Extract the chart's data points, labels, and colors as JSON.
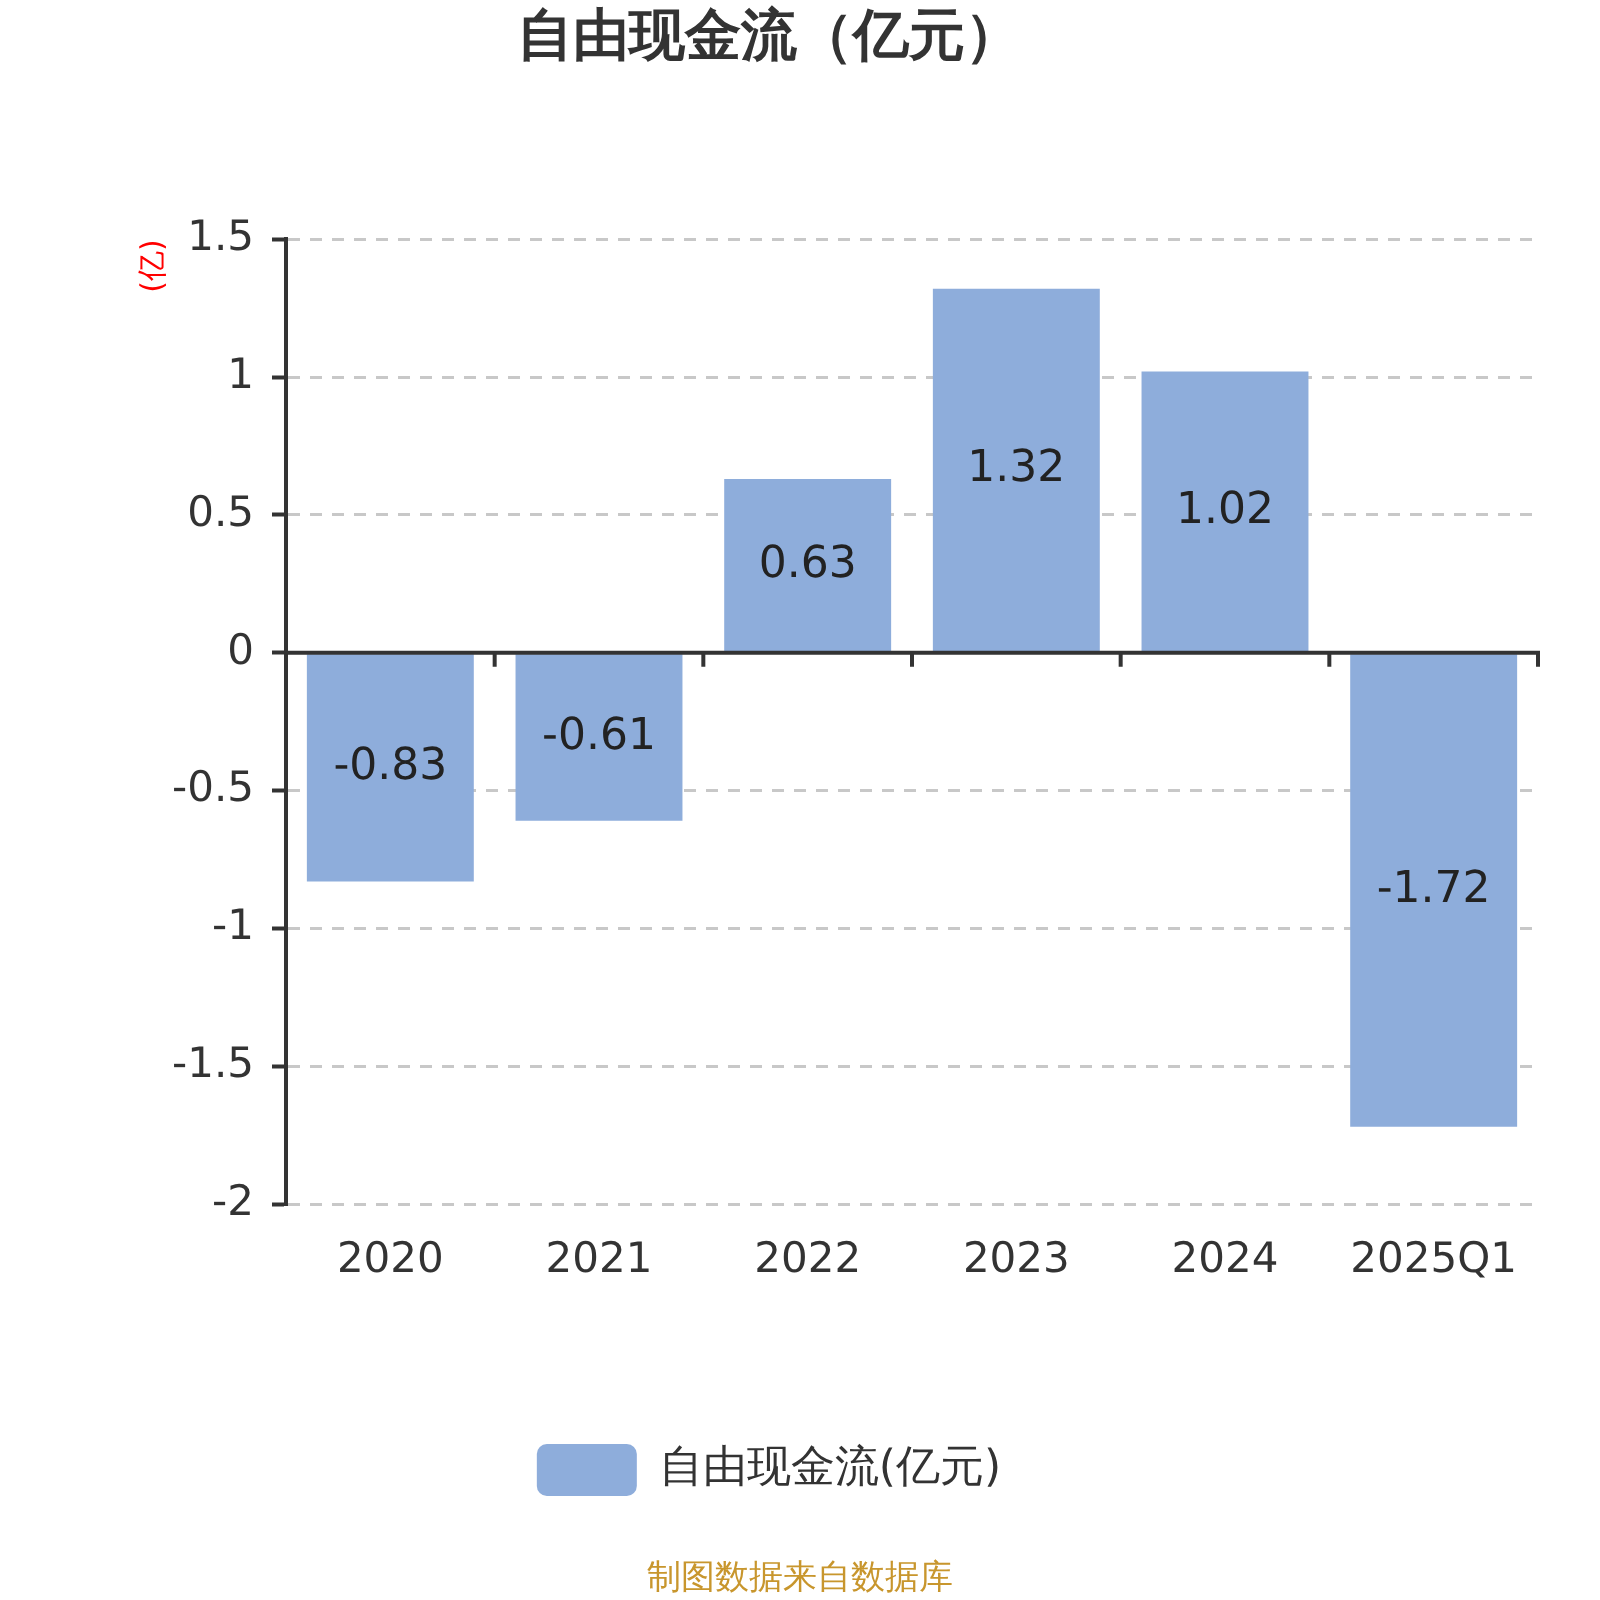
{
  "chart_data": {
    "type": "bar",
    "title": "自由现金流（亿元）",
    "ylabel": "(亿)",
    "categories": [
      "2020",
      "2021",
      "2022",
      "2023",
      "2024",
      "2025Q1"
    ],
    "series": [
      {
        "name": "自由现金流(亿元)",
        "color": "#8eaddb",
        "values": [
          -0.83,
          -0.61,
          0.63,
          1.32,
          1.02,
          -1.72
        ]
      }
    ],
    "ylim": [
      -2,
      1.5
    ],
    "yticks": [
      -2,
      -1.5,
      -1,
      -0.5,
      0,
      0.5,
      1,
      1.5
    ],
    "grid": "y",
    "legend": "bottom",
    "data_labels": true,
    "annotations": [
      "制图数据来自数据库"
    ]
  }
}
